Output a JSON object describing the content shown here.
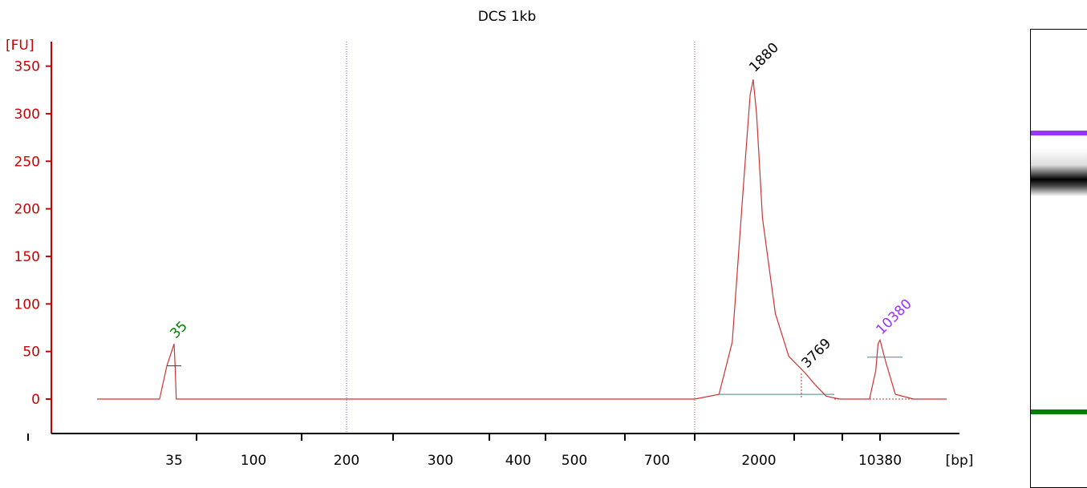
{
  "chart_data": {
    "type": "line",
    "title": "DCS 1kb",
    "ylabel": "[FU]",
    "xlabel": "[bp]",
    "ylim": [
      -35,
      360
    ],
    "yticks": [
      0,
      50,
      100,
      150,
      200,
      250,
      300,
      350
    ],
    "xticks": [
      "35",
      "100",
      "200",
      "300",
      "400",
      "500",
      "700",
      "2000",
      "10380"
    ],
    "series": [
      {
        "values": [
          [
            30,
            0
          ],
          [
            34,
            0
          ],
          [
            34.5,
            35
          ],
          [
            35,
            58
          ],
          [
            35.5,
            35
          ],
          [
            36,
            0
          ],
          [
            700,
            0
          ],
          [
            1000,
            0
          ],
          [
            1300,
            5
          ],
          [
            1500,
            60
          ],
          [
            1700,
            230
          ],
          [
            1820,
            320
          ],
          [
            1880,
            336
          ],
          [
            1950,
            300
          ],
          [
            2100,
            190
          ],
          [
            2500,
            90
          ],
          [
            3000,
            45
          ],
          [
            3769,
            27
          ],
          [
            4300,
            15
          ],
          [
            5000,
            3
          ],
          [
            6000,
            0
          ],
          [
            9000,
            0
          ],
          [
            9800,
            30
          ],
          [
            10100,
            58
          ],
          [
            10380,
            62
          ],
          [
            10700,
            40
          ],
          [
            11300,
            5
          ],
          [
            12500,
            0
          ],
          [
            15000,
            0
          ]
        ]
      }
    ],
    "peaks": [
      {
        "label": "35",
        "x": 35,
        "y": 58,
        "color": "#008000"
      },
      {
        "label": "1880",
        "x": 1880,
        "y": 338,
        "color": "#000000"
      },
      {
        "label": "3769",
        "x": 3769,
        "y": 27,
        "color": "#000000"
      },
      {
        "label": "10380",
        "x": 10380,
        "y": 62,
        "color": "#9933ff"
      }
    ],
    "line_color": "#cc3333",
    "axis_color": "#cc0000",
    "grid": false
  },
  "gel": {
    "bands": [
      {
        "name": "upper-marker",
        "color": "#9933ff"
      },
      {
        "name": "sample",
        "color": "#000000"
      },
      {
        "name": "lower-marker",
        "color": "#008000"
      }
    ]
  }
}
